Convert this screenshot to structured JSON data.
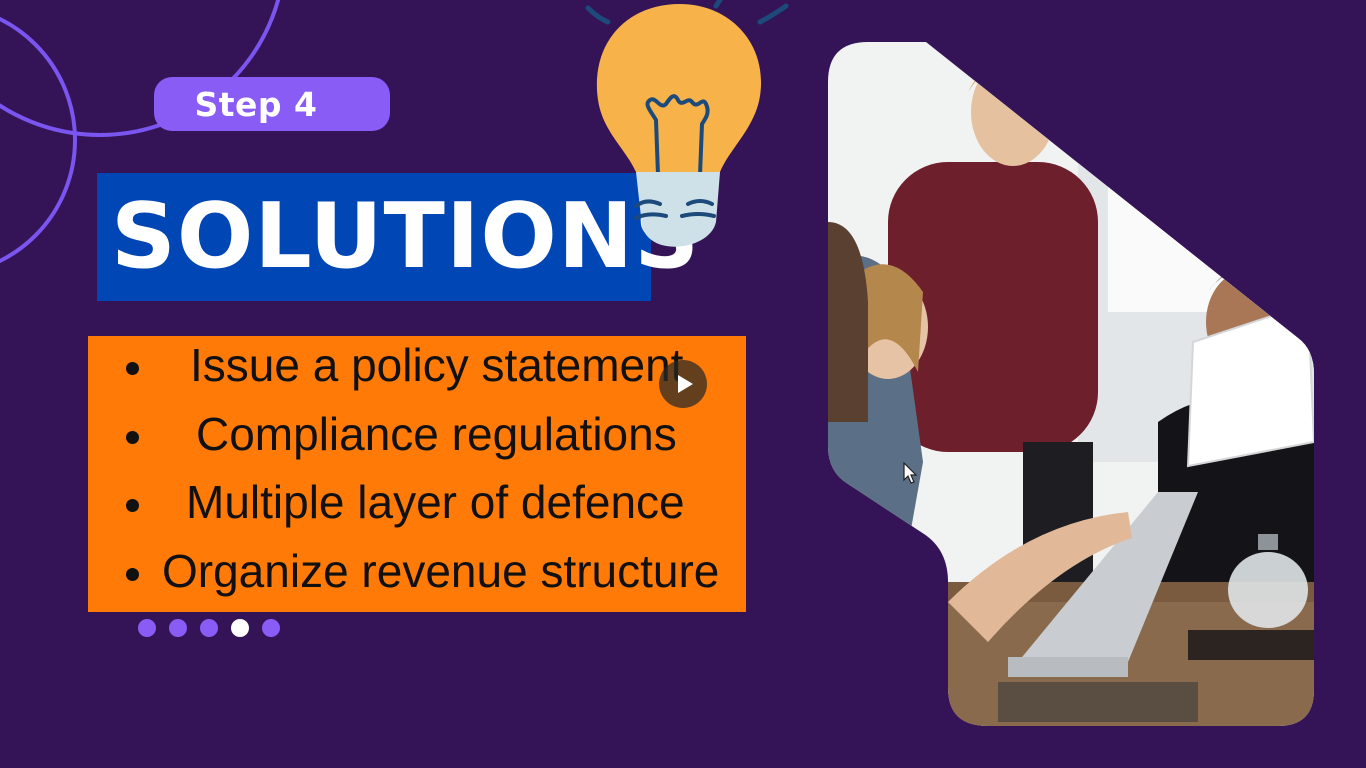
{
  "slide": {
    "step_label": "Step 4",
    "title": "SOLUTIONS",
    "bullets": [
      "Issue a policy statement",
      "Compliance regulations",
      "Multiple layer of defence",
      "Organize revenue structure"
    ],
    "pagination": {
      "total": 5,
      "active_index": 3
    }
  },
  "colors": {
    "background": "#341457",
    "pill": "#8a5cf6",
    "title_box": "#0046b5",
    "list_box": "#ff7a06",
    "bulb": "#f8b24a",
    "bulb_base": "#cfe1e8"
  },
  "icons": {
    "bulb": "lightbulb-icon",
    "play": "play-icon",
    "cursor": "mouse-pointer-icon"
  }
}
